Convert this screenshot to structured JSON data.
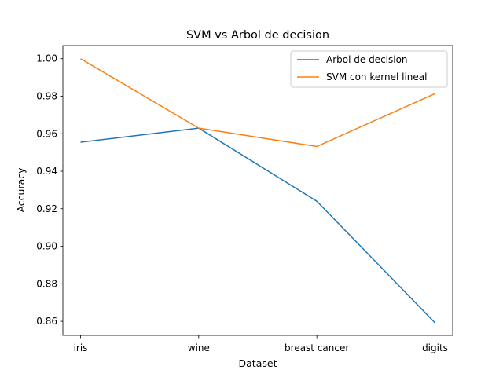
{
  "chart_data": {
    "type": "line",
    "title": "SVM vs Arbol de decision",
    "xlabel": "Dataset",
    "ylabel": "Accuracy",
    "categories": [
      "iris",
      "wine",
      "breast cancer",
      "digits"
    ],
    "ylim": [
      0.8525,
      1.007
    ],
    "yticks": [
      0.86,
      0.88,
      0.9,
      0.92,
      0.94,
      0.96,
      0.98,
      1.0
    ],
    "ytick_labels": [
      "0.86",
      "0.88",
      "0.90",
      "0.92",
      "0.94",
      "0.96",
      "0.98",
      "1.00"
    ],
    "grid": false,
    "legend_position": "top-right",
    "series": [
      {
        "name": "Arbol de decision",
        "color": "#1f77b4",
        "values": [
          0.9555,
          0.963,
          0.924,
          0.8592
        ]
      },
      {
        "name": "SVM con kernel lineal",
        "color": "#ff7f0e",
        "values": [
          1.0,
          0.963,
          0.9532,
          0.9814
        ]
      }
    ]
  }
}
